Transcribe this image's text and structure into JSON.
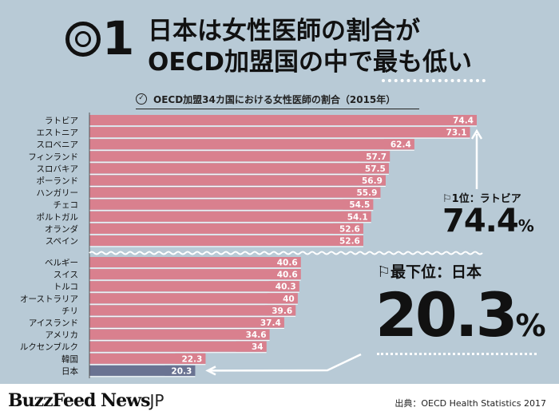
{
  "header": {
    "number": "1",
    "line1": "日本は女性医師の割合が",
    "line2": "OECD加盟国の中で最も低い"
  },
  "chart_data": {
    "type": "bar",
    "orientation": "horizontal",
    "title": "OECD加盟34カ国における女性医師の割合（2015年）",
    "xlabel": "",
    "ylabel": "",
    "xlim": [
      0,
      74.4
    ],
    "grid": false,
    "highlight_category": "日本",
    "colors": {
      "bar": "#d9808e",
      "highlight": "#6a7392",
      "label_bg": "#d9808e"
    },
    "groups": [
      {
        "categories": [
          "ラトビア",
          "エストニア",
          "スロベニア",
          "フィンランド",
          "スロバキア",
          "ポーランド",
          "ハンガリー",
          "チェコ",
          "ポルトガル",
          "オランダ",
          "スペイン"
        ],
        "values": [
          74.4,
          73.1,
          62.4,
          57.7,
          57.5,
          56.9,
          55.9,
          54.5,
          54.1,
          52.6,
          52.6
        ]
      },
      {
        "categories": [
          "ベルギー",
          "スイス",
          "トルコ",
          "オーストラリア",
          "チリ",
          "アイスランド",
          "アメリカ",
          "ルクセンブルク",
          "韓国",
          "日本"
        ],
        "values": [
          40.6,
          40.6,
          40.3,
          40,
          39.6,
          37.4,
          34.6,
          34,
          22.3,
          20.3
        ]
      }
    ]
  },
  "callouts": {
    "top": {
      "flag": "⚐",
      "label": "1位：ラトビア",
      "value": "74.4",
      "unit": "%"
    },
    "bottom": {
      "flag": "⚐",
      "label": "最下位：日本",
      "value": "20.3",
      "unit": "%"
    }
  },
  "footer": {
    "brand": "BuzzFeed News",
    "brand_suffix": "JP",
    "source": "出典：OECD Health Statistics 2017"
  }
}
